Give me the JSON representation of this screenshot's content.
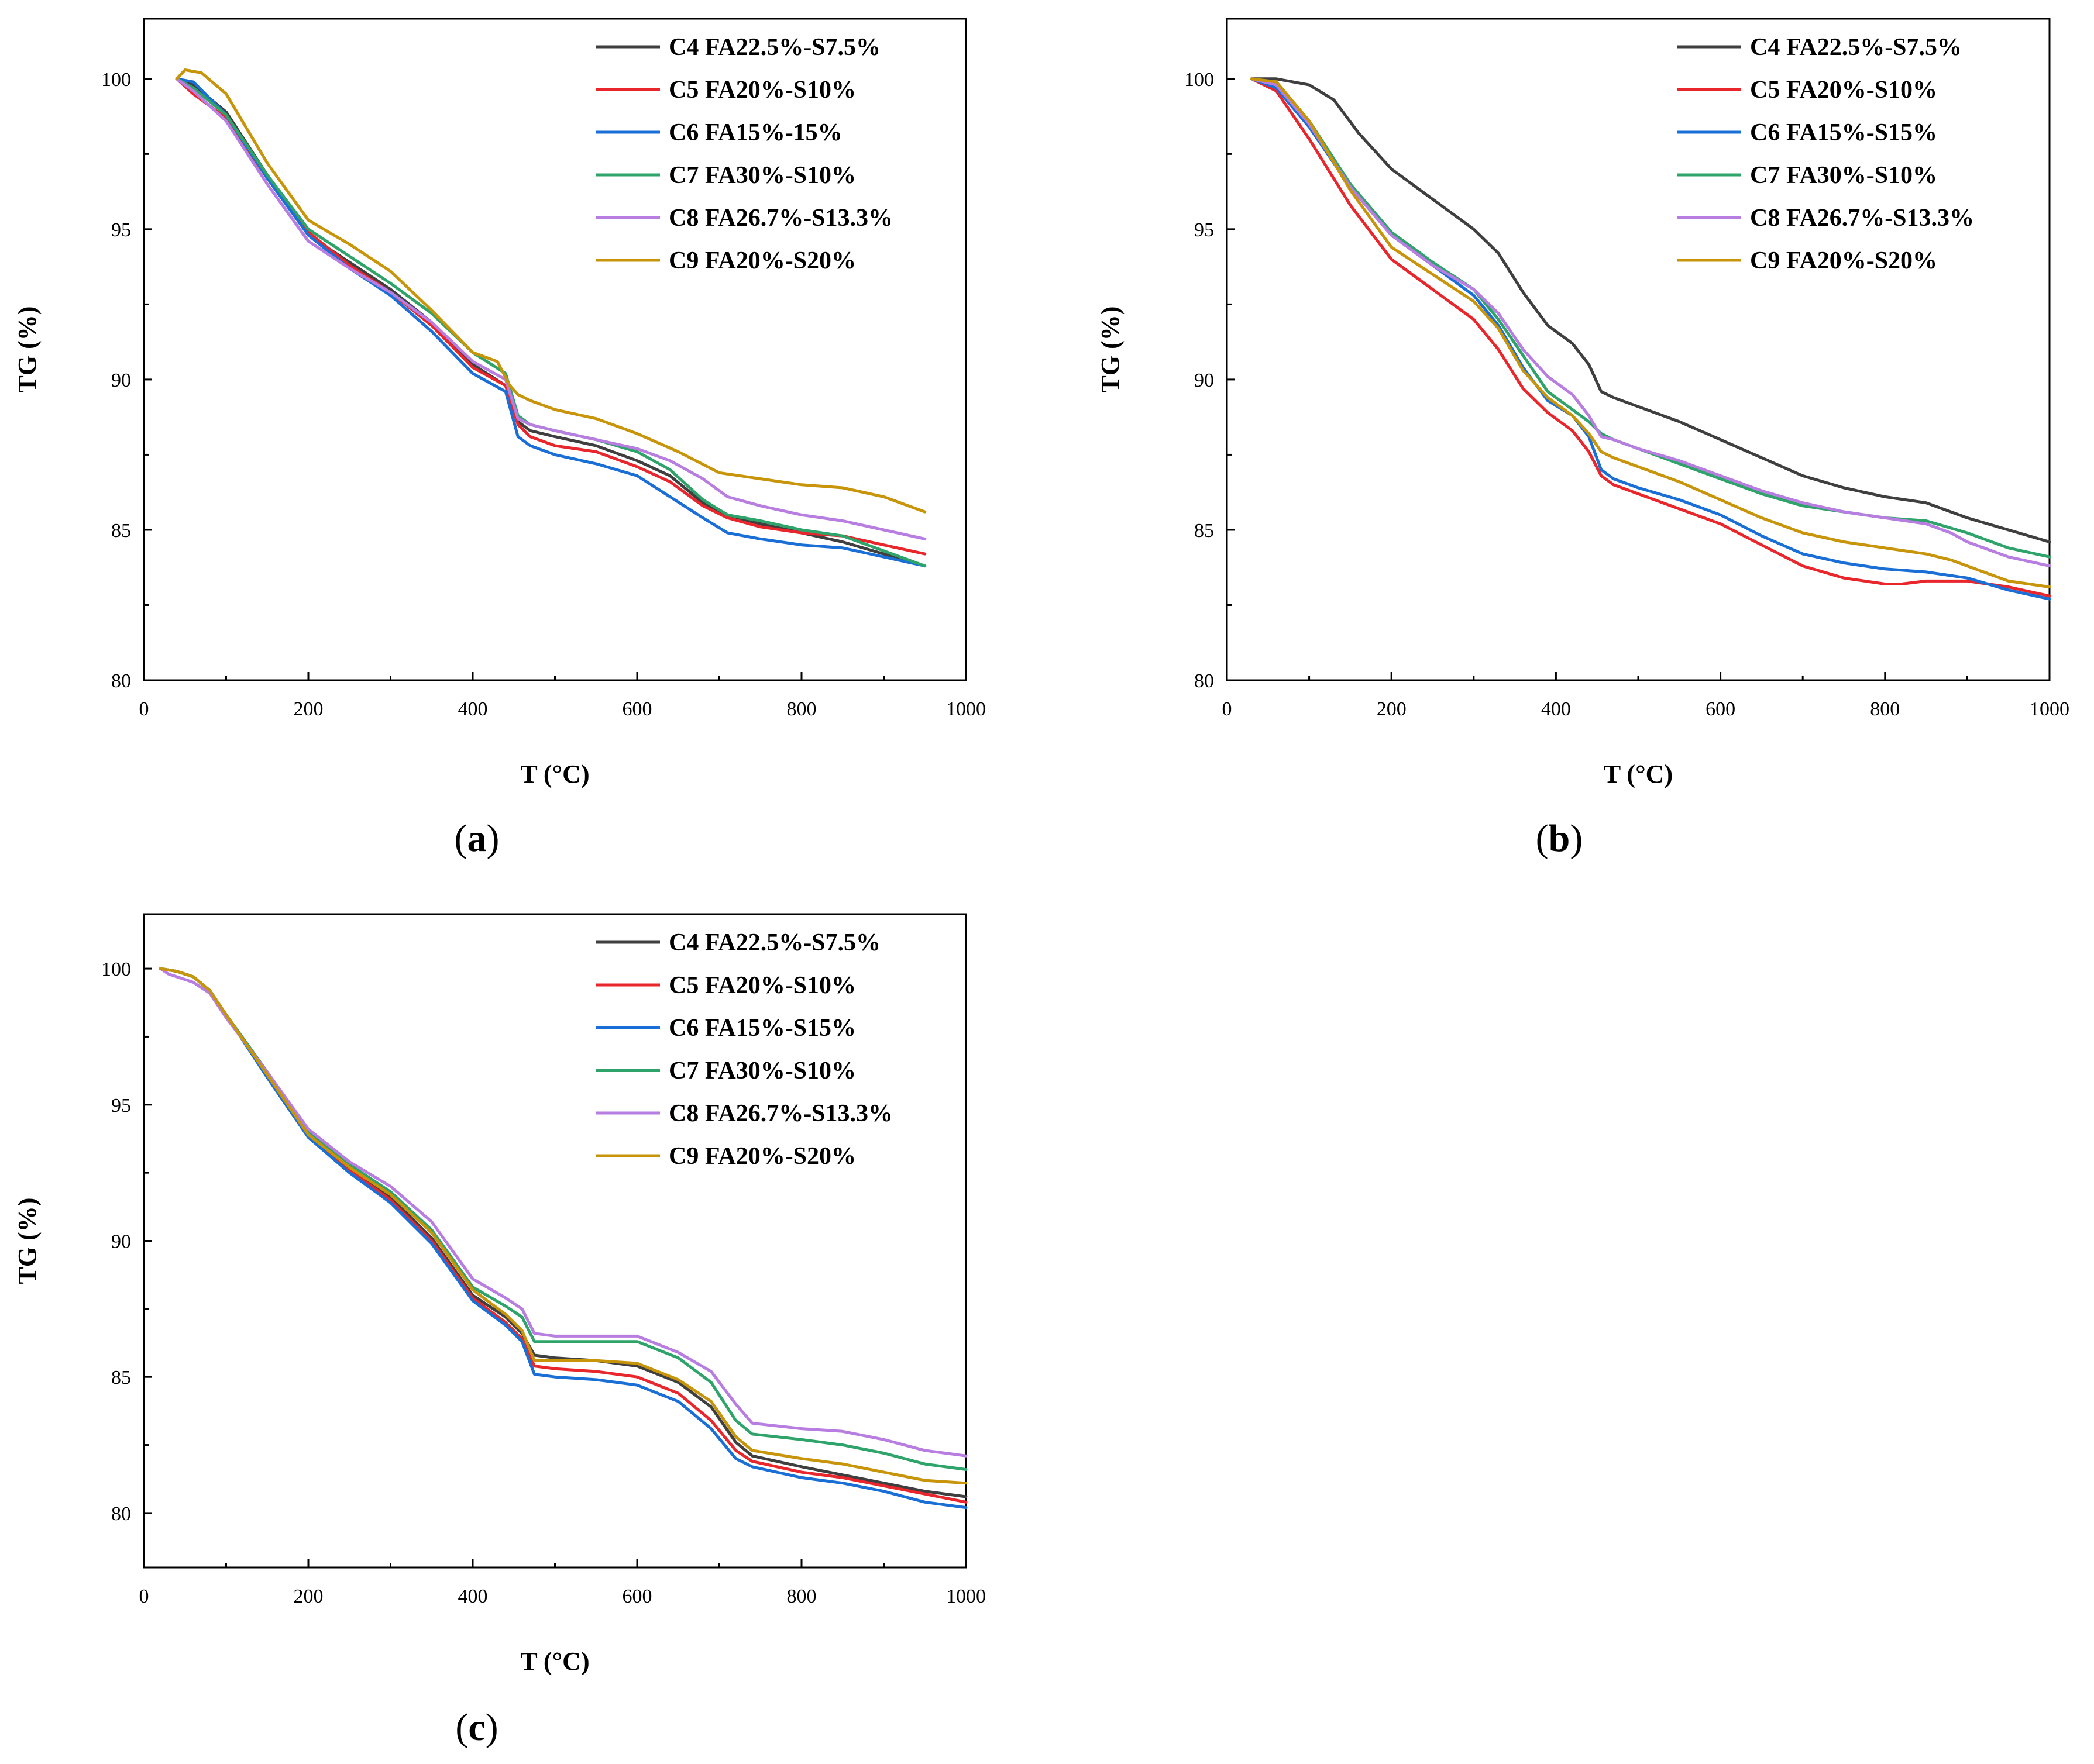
{
  "colors": {
    "C4": "#3f3f3f",
    "C5": "#e8262b",
    "C6": "#1a6fd6",
    "C7": "#2ea36a",
    "C8": "#b77de0",
    "C9": "#c8940a"
  },
  "chart_data": [
    {
      "type": "line",
      "panel_label": "a",
      "xlabel": "T (°C)",
      "ylabel": "TG (%)",
      "xlim": [
        0,
        1000
      ],
      "ylim": [
        80,
        102
      ],
      "xticks": [
        0,
        200,
        400,
        600,
        800,
        1000
      ],
      "yticks": [
        80,
        85,
        90,
        95,
        100
      ],
      "legend_position": "top-right",
      "series": [
        {
          "name": "C4 FA22.5%-S7.5%",
          "key": "C4",
          "x": [
            40,
            60,
            100,
            150,
            200,
            250,
            300,
            350,
            400,
            440,
            455,
            470,
            500,
            550,
            600,
            640,
            680,
            710,
            750,
            800,
            850,
            900,
            950
          ],
          "y": [
            100,
            99.8,
            98.9,
            96.8,
            94.8,
            93.9,
            93.0,
            91.9,
            90.5,
            89.8,
            88.6,
            88.3,
            88.1,
            87.8,
            87.3,
            86.8,
            85.9,
            85.5,
            85.2,
            84.9,
            84.6,
            84.2,
            83.8
          ]
        },
        {
          "name": "C5 FA20%-S10%",
          "key": "C5",
          "x": [
            40,
            60,
            100,
            150,
            200,
            250,
            300,
            350,
            400,
            440,
            455,
            470,
            500,
            550,
            600,
            640,
            680,
            710,
            750,
            800,
            850,
            900,
            950
          ],
          "y": [
            100,
            99.5,
            98.7,
            96.7,
            94.9,
            93.8,
            92.9,
            91.8,
            90.4,
            89.8,
            88.5,
            88.1,
            87.8,
            87.6,
            87.1,
            86.6,
            85.8,
            85.4,
            85.1,
            84.9,
            84.8,
            84.5,
            84.2
          ]
        },
        {
          "name": "C6 FA15%-15%",
          "key": "C6",
          "x": [
            40,
            60,
            100,
            150,
            200,
            250,
            300,
            350,
            400,
            440,
            455,
            470,
            500,
            550,
            600,
            640,
            680,
            710,
            750,
            800,
            850,
            900,
            950
          ],
          "y": [
            100,
            99.9,
            98.8,
            96.7,
            94.8,
            93.7,
            92.8,
            91.6,
            90.2,
            89.6,
            88.1,
            87.8,
            87.5,
            87.2,
            86.8,
            86.1,
            85.4,
            84.9,
            84.7,
            84.5,
            84.4,
            84.1,
            83.8
          ]
        },
        {
          "name": "C7 FA30%-S10%",
          "key": "C7",
          "x": [
            40,
            60,
            100,
            150,
            200,
            250,
            300,
            350,
            400,
            440,
            455,
            470,
            500,
            550,
            600,
            640,
            680,
            710,
            750,
            800,
            850,
            900,
            950
          ],
          "y": [
            100,
            99.7,
            98.8,
            96.8,
            95.0,
            94.1,
            93.2,
            92.2,
            90.9,
            90.2,
            88.8,
            88.5,
            88.3,
            88.0,
            87.6,
            87.0,
            86.0,
            85.5,
            85.3,
            85.0,
            84.8,
            84.3,
            83.8
          ]
        },
        {
          "name": "C8 FA26.7%-S13.3%",
          "key": "C8",
          "x": [
            40,
            60,
            100,
            150,
            200,
            250,
            300,
            350,
            400,
            440,
            455,
            470,
            500,
            550,
            600,
            640,
            680,
            710,
            750,
            800,
            850,
            900,
            950
          ],
          "y": [
            100,
            99.6,
            98.6,
            96.5,
            94.6,
            93.7,
            92.9,
            91.9,
            90.6,
            90.0,
            88.7,
            88.5,
            88.3,
            88.0,
            87.7,
            87.3,
            86.7,
            86.1,
            85.8,
            85.5,
            85.3,
            85.0,
            84.7
          ]
        },
        {
          "name": "C9 FA20%-S20%",
          "key": "C9",
          "x": [
            40,
            50,
            70,
            100,
            150,
            200,
            250,
            300,
            350,
            400,
            430,
            445,
            455,
            470,
            500,
            550,
            600,
            650,
            700,
            750,
            800,
            850,
            900,
            950
          ],
          "y": [
            100,
            100.3,
            100.2,
            99.5,
            97.2,
            95.3,
            94.5,
            93.6,
            92.3,
            90.9,
            90.6,
            89.8,
            89.5,
            89.3,
            89.0,
            88.7,
            88.2,
            87.6,
            86.9,
            86.7,
            86.5,
            86.4,
            86.1,
            85.6
          ]
        }
      ]
    },
    {
      "type": "line",
      "panel_label": "b",
      "xlabel": "T (°C)",
      "ylabel": "TG (%)",
      "xlim": [
        0,
        1000
      ],
      "ylim": [
        80,
        102
      ],
      "xticks": [
        0,
        200,
        400,
        600,
        800,
        1000
      ],
      "yticks": [
        80,
        85,
        90,
        95,
        100
      ],
      "legend_position": "top-right",
      "series": [
        {
          "name": "C4 FA22.5%-S7.5%",
          "key": "C4",
          "x": [
            30,
            60,
            100,
            130,
            160,
            200,
            250,
            300,
            330,
            360,
            390,
            420,
            440,
            455,
            470,
            500,
            550,
            600,
            650,
            700,
            750,
            800,
            850,
            900,
            950,
            1000
          ],
          "y": [
            100,
            100,
            99.8,
            99.3,
            98.2,
            97.0,
            96.0,
            95.0,
            94.2,
            92.9,
            91.8,
            91.2,
            90.5,
            89.6,
            89.4,
            89.1,
            88.6,
            88.0,
            87.4,
            86.8,
            86.4,
            86.1,
            85.9,
            85.4,
            85.0,
            84.6
          ]
        },
        {
          "name": "C5 FA20%-S10%",
          "key": "C5",
          "x": [
            30,
            60,
            100,
            150,
            200,
            250,
            300,
            330,
            360,
            390,
            420,
            440,
            455,
            470,
            500,
            550,
            600,
            650,
            700,
            750,
            800,
            820,
            850,
            900,
            950,
            1000
          ],
          "y": [
            100,
            99.6,
            98.0,
            95.8,
            94.0,
            93.0,
            92.0,
            91.0,
            89.7,
            88.9,
            88.3,
            87.6,
            86.8,
            86.5,
            86.2,
            85.7,
            85.2,
            84.5,
            83.8,
            83.4,
            83.2,
            83.2,
            83.3,
            83.3,
            83.1,
            82.8
          ]
        },
        {
          "name": "C6 FA15%-S15%",
          "key": "C6",
          "x": [
            30,
            60,
            100,
            150,
            200,
            250,
            300,
            330,
            360,
            390,
            420,
            440,
            455,
            470,
            500,
            550,
            600,
            650,
            700,
            750,
            800,
            850,
            900,
            950,
            1000
          ],
          "y": [
            100,
            99.7,
            98.4,
            96.4,
            94.8,
            93.8,
            92.8,
            91.8,
            90.4,
            89.3,
            88.8,
            88.1,
            87.0,
            86.7,
            86.4,
            86.0,
            85.5,
            84.8,
            84.2,
            83.9,
            83.7,
            83.6,
            83.4,
            83.0,
            82.7
          ]
        },
        {
          "name": "C7 FA30%-S10%",
          "key": "C7",
          "x": [
            30,
            60,
            100,
            150,
            200,
            250,
            300,
            330,
            360,
            390,
            420,
            440,
            455,
            470,
            500,
            550,
            600,
            650,
            700,
            750,
            800,
            850,
            900,
            950,
            1000
          ],
          "y": [
            100,
            99.9,
            98.6,
            96.5,
            94.9,
            93.9,
            93.0,
            92.0,
            90.8,
            89.6,
            89.0,
            88.6,
            88.2,
            88.0,
            87.7,
            87.2,
            86.7,
            86.2,
            85.8,
            85.6,
            85.4,
            85.3,
            84.9,
            84.4,
            84.1
          ]
        },
        {
          "name": "C8 FA26.7%-S13.3%",
          "key": "C8",
          "x": [
            30,
            60,
            100,
            150,
            200,
            250,
            300,
            330,
            360,
            390,
            420,
            440,
            455,
            470,
            500,
            550,
            600,
            650,
            700,
            750,
            800,
            850,
            880,
            900,
            950,
            1000
          ],
          "y": [
            100,
            99.8,
            98.5,
            96.4,
            94.8,
            93.8,
            93.0,
            92.2,
            91.0,
            90.1,
            89.5,
            88.8,
            88.1,
            88.0,
            87.7,
            87.3,
            86.8,
            86.3,
            85.9,
            85.6,
            85.4,
            85.2,
            84.9,
            84.6,
            84.1,
            83.8
          ]
        },
        {
          "name": "C9 FA20%-S20%",
          "key": "C9",
          "x": [
            30,
            60,
            100,
            150,
            200,
            250,
            300,
            330,
            360,
            390,
            420,
            440,
            455,
            470,
            500,
            550,
            600,
            650,
            700,
            750,
            800,
            850,
            880,
            900,
            950,
            1000
          ],
          "y": [
            100,
            99.9,
            98.6,
            96.3,
            94.4,
            93.5,
            92.6,
            91.7,
            90.3,
            89.4,
            88.8,
            88.2,
            87.6,
            87.4,
            87.1,
            86.6,
            86.0,
            85.4,
            84.9,
            84.6,
            84.4,
            84.2,
            84.0,
            83.8,
            83.3,
            83.1
          ]
        }
      ]
    },
    {
      "type": "line",
      "panel_label": "c",
      "xlabel": "T (°C)",
      "ylabel": "TG (%)",
      "xlim": [
        0,
        1000
      ],
      "ylim": [
        78,
        102
      ],
      "xticks": [
        0,
        200,
        400,
        600,
        800,
        1000
      ],
      "yticks": [
        80,
        85,
        90,
        95,
        100
      ],
      "legend_position": "top-right",
      "series": [
        {
          "name": "C4 FA22.5%-S7.5%",
          "key": "C4",
          "x": [
            20,
            40,
            60,
            80,
            100,
            150,
            200,
            250,
            300,
            350,
            400,
            440,
            460,
            475,
            500,
            550,
            600,
            650,
            690,
            720,
            740,
            800,
            850,
            900,
            950,
            1000
          ],
          "y": [
            100,
            99.9,
            99.7,
            99.2,
            98.3,
            96.2,
            94.0,
            92.7,
            91.6,
            90.1,
            88.0,
            87.2,
            86.6,
            85.8,
            85.7,
            85.6,
            85.4,
            84.8,
            83.9,
            82.6,
            82.1,
            81.7,
            81.4,
            81.1,
            80.8,
            80.6
          ]
        },
        {
          "name": "C5 FA20%-S10%",
          "key": "C5",
          "x": [
            20,
            40,
            60,
            80,
            100,
            150,
            200,
            250,
            300,
            350,
            400,
            440,
            460,
            475,
            500,
            550,
            600,
            650,
            690,
            720,
            740,
            800,
            850,
            900,
            950,
            1000
          ],
          "y": [
            100,
            99.9,
            99.7,
            99.2,
            98.3,
            96.1,
            93.9,
            92.6,
            91.5,
            90.0,
            87.9,
            87.0,
            86.4,
            85.4,
            85.3,
            85.2,
            85.0,
            84.4,
            83.4,
            82.3,
            81.9,
            81.5,
            81.3,
            81.0,
            80.7,
            80.4
          ]
        },
        {
          "name": "C6 FA15%-S15%",
          "key": "C6",
          "x": [
            20,
            40,
            60,
            80,
            100,
            150,
            200,
            250,
            300,
            350,
            400,
            440,
            460,
            475,
            500,
            550,
            600,
            650,
            690,
            720,
            740,
            800,
            850,
            900,
            950,
            1000
          ],
          "y": [
            100,
            99.9,
            99.7,
            99.2,
            98.3,
            96.0,
            93.8,
            92.5,
            91.4,
            89.9,
            87.8,
            86.9,
            86.3,
            85.1,
            85.0,
            84.9,
            84.7,
            84.1,
            83.1,
            82.0,
            81.7,
            81.3,
            81.1,
            80.8,
            80.4,
            80.2
          ]
        },
        {
          "name": "C7 FA30%-S10%",
          "key": "C7",
          "x": [
            20,
            40,
            60,
            80,
            100,
            150,
            200,
            250,
            300,
            350,
            400,
            440,
            460,
            475,
            500,
            550,
            600,
            650,
            690,
            720,
            740,
            800,
            850,
            900,
            950,
            1000
          ],
          "y": [
            100,
            99.9,
            99.7,
            99.2,
            98.3,
            96.2,
            94.0,
            92.8,
            91.8,
            90.4,
            88.3,
            87.6,
            87.2,
            86.3,
            86.3,
            86.3,
            86.3,
            85.7,
            84.8,
            83.4,
            82.9,
            82.7,
            82.5,
            82.2,
            81.8,
            81.6
          ]
        },
        {
          "name": "C8 FA26.7%-S13.3%",
          "key": "C8",
          "x": [
            20,
            30,
            60,
            80,
            100,
            150,
            200,
            250,
            300,
            350,
            400,
            440,
            460,
            475,
            500,
            550,
            600,
            650,
            690,
            720,
            740,
            800,
            850,
            900,
            950,
            1000
          ],
          "y": [
            100,
            99.8,
            99.5,
            99.1,
            98.2,
            96.2,
            94.1,
            92.9,
            92.0,
            90.7,
            88.6,
            87.9,
            87.5,
            86.6,
            86.5,
            86.5,
            86.5,
            85.9,
            85.2,
            84.0,
            83.3,
            83.1,
            83.0,
            82.7,
            82.3,
            82.1
          ]
        },
        {
          "name": "C9 FA20%-S20%",
          "key": "C9",
          "x": [
            20,
            40,
            60,
            80,
            100,
            150,
            200,
            250,
            300,
            350,
            400,
            440,
            460,
            475,
            500,
            550,
            600,
            650,
            690,
            720,
            740,
            800,
            850,
            900,
            950,
            1000
          ],
          "y": [
            100,
            99.9,
            99.7,
            99.2,
            98.3,
            96.1,
            93.9,
            92.7,
            91.7,
            90.3,
            88.2,
            87.3,
            86.7,
            85.6,
            85.6,
            85.6,
            85.5,
            84.9,
            84.1,
            82.8,
            82.3,
            82.0,
            81.8,
            81.5,
            81.2,
            81.1
          ]
        }
      ]
    }
  ]
}
